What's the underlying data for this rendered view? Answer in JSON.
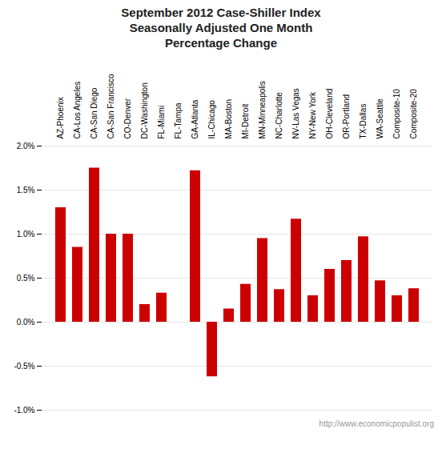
{
  "chart_data": {
    "type": "bar",
    "title": "September 2012 Case-Shiller Index\nSeasonally Adjusted One Month\nPercentage Change",
    "categories": [
      "AZ-Phoenix",
      "CA-Los Angeles",
      "CA-San Diego",
      "CA-San Francisco",
      "CO-Denver",
      "DC-Washington",
      "FL-Miami",
      "FL-Tampa",
      "GA-Atlanta",
      "IL-Chicago",
      "MA-Boston",
      "MI-Detroit",
      "MN-Minneapolis",
      "NC-Charlotte",
      "NV-Las Vegas",
      "NY-New York",
      "OH-Cleveland",
      "OR-Portland",
      "TX-Dallas",
      "WA-Seattle",
      "Composite-10",
      "Composite-20"
    ],
    "values": [
      0.013,
      0.0085,
      0.0175,
      0.01,
      0.01,
      0.002,
      0.0033,
      0.0,
      0.0172,
      -0.0062,
      0.0015,
      0.0043,
      0.0095,
      0.0037,
      0.0117,
      0.003,
      0.006,
      0.007,
      0.0097,
      0.0047,
      0.003,
      0.0038
    ],
    "color": "#cc0000",
    "ylim": [
      -0.01,
      0.02
    ],
    "yticks": [
      {
        "value": -0.01,
        "label": "-1.0%"
      },
      {
        "value": -0.005,
        "label": "-0.5%"
      },
      {
        "value": 0.0,
        "label": "0.0%"
      },
      {
        "value": 0.005,
        "label": "0.5%"
      },
      {
        "value": 0.01,
        "label": "1.0%"
      },
      {
        "value": 0.015,
        "label": "1.5%"
      },
      {
        "value": 0.02,
        "label": "2.0%"
      }
    ],
    "grid": true,
    "annotations": [
      "http://www.economicpopulist.org"
    ]
  }
}
